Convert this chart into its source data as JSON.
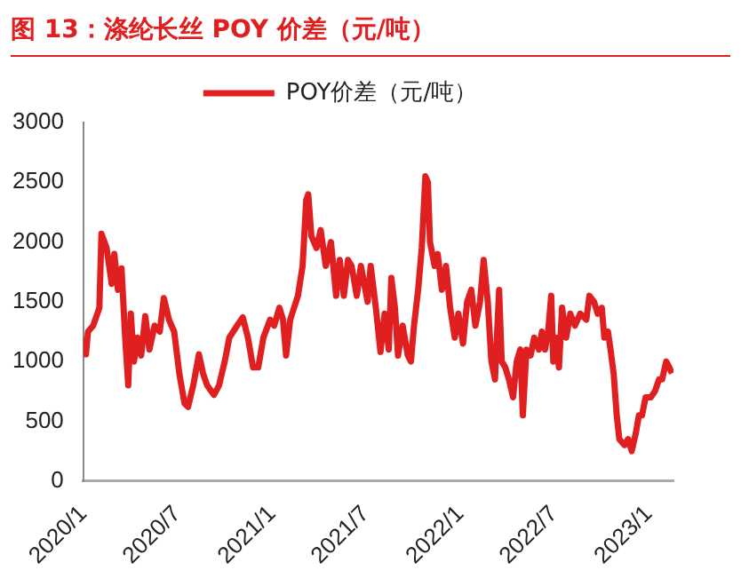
{
  "chart_data": {
    "type": "line",
    "title": "图 13：涤纶长丝 POY 价差（元/吨）",
    "legend": "top",
    "x": [
      "2020-01-02",
      "2020-01-06",
      "2020-01-10",
      "2020-01-20",
      "2020-02-01",
      "2020-02-05",
      "2020-02-15",
      "2020-02-25",
      "2020-03-01",
      "2020-03-08",
      "2020-03-15",
      "2020-03-22",
      "2020-03-28",
      "2020-04-02",
      "2020-04-08",
      "2020-04-15",
      "2020-04-22",
      "2020-04-30",
      "2020-05-08",
      "2020-05-18",
      "2020-05-28",
      "2020-06-05",
      "2020-06-15",
      "2020-06-25",
      "2020-07-05",
      "2020-07-15",
      "2020-07-22",
      "2020-08-01",
      "2020-08-12",
      "2020-08-20",
      "2020-08-28",
      "2020-09-10",
      "2020-09-20",
      "2020-10-01",
      "2020-10-10",
      "2020-10-25",
      "2020-11-05",
      "2020-11-15",
      "2020-11-25",
      "2020-12-05",
      "2020-12-15",
      "2020-12-28",
      "2021-01-05",
      "2021-01-15",
      "2021-01-22",
      "2021-01-28",
      "2021-02-05",
      "2021-02-20",
      "2021-03-01",
      "2021-03-08",
      "2021-03-12",
      "2021-03-18",
      "2021-03-28",
      "2021-04-05",
      "2021-04-15",
      "2021-04-25",
      "2021-05-05",
      "2021-05-12",
      "2021-05-20",
      "2021-05-28",
      "2021-06-04",
      "2021-06-14",
      "2021-06-22",
      "2021-07-05",
      "2021-07-11",
      "2021-07-21",
      "2021-07-30",
      "2021-08-07",
      "2021-08-15",
      "2021-08-20",
      "2021-08-27",
      "2021-09-02",
      "2021-09-11",
      "2021-09-21",
      "2021-09-27",
      "2021-10-03",
      "2021-10-11",
      "2021-10-18",
      "2021-10-25",
      "2021-10-30",
      "2021-11-03",
      "2021-11-12",
      "2021-11-18",
      "2021-11-26",
      "2021-12-04",
      "2021-12-12",
      "2021-12-21",
      "2021-12-28",
      "2022-01-06",
      "2022-01-14",
      "2022-01-22",
      "2022-01-30",
      "2022-02-08",
      "2022-02-15",
      "2022-02-23",
      "2022-03-02",
      "2022-03-09",
      "2022-03-17",
      "2022-03-22",
      "2022-03-29",
      "2022-04-05",
      "2022-04-13",
      "2022-04-20",
      "2022-04-27",
      "2022-05-02",
      "2022-05-09",
      "2022-05-17",
      "2022-05-24",
      "2022-06-02",
      "2022-06-08",
      "2022-06-14",
      "2022-06-20",
      "2022-06-26",
      "2022-06-30",
      "2022-07-05",
      "2022-07-11",
      "2022-07-17",
      "2022-07-25",
      "2022-08-02",
      "2022-08-11",
      "2022-08-21",
      "2022-09-02",
      "2022-09-08",
      "2022-09-17",
      "2022-09-24",
      "2022-10-02",
      "2022-10-07",
      "2022-10-14",
      "2022-10-19",
      "2022-10-25",
      "2022-10-31",
      "2022-11-05",
      "2022-11-15",
      "2022-11-22",
      "2022-11-29",
      "2022-12-07",
      "2022-12-13",
      "2022-12-19",
      "2022-12-26",
      "2023-01-05",
      "2023-01-13",
      "2023-01-21",
      "2023-01-27",
      "2023-02-04",
      "2023-02-10",
      "2023-02-15"
    ],
    "series": [
      {
        "name": "POY价差（元/吨）",
        "color": "#e02020",
        "values": [
          1200,
          1060,
          1250,
          1300,
          1450,
          2070,
          1950,
          1650,
          1900,
          1600,
          1780,
          1200,
          800,
          1400,
          1000,
          1200,
          1050,
          1380,
          1100,
          1300,
          1250,
          1530,
          1350,
          1250,
          900,
          650,
          620,
          800,
          1060,
          900,
          800,
          720,
          800,
          1000,
          1200,
          1300,
          1370,
          1200,
          950,
          950,
          1200,
          1350,
          1300,
          1450,
          1350,
          1050,
          1350,
          1550,
          1800,
          2350,
          2400,
          2050,
          1950,
          2100,
          1800,
          2000,
          1550,
          1850,
          1550,
          1850,
          1800,
          1550,
          1800,
          1500,
          1800,
          1450,
          1080,
          1400,
          1100,
          1700,
          1450,
          1050,
          1300,
          1050,
          1000,
          1300,
          1600,
          1950,
          2550,
          2500,
          2000,
          1800,
          1900,
          1600,
          1800,
          1450,
          1200,
          1400,
          1150,
          1500,
          1600,
          1300,
          1500,
          1850,
          1500,
          1000,
          850,
          1600,
          1000,
          950,
          850,
          700,
          1000,
          1100,
          550,
          1100,
          1050,
          1200,
          1100,
          1250,
          1100,
          1250,
          1550,
          1000,
          1200,
          950,
          1450,
          1200,
          1400,
          1300,
          1400,
          1350,
          1550,
          1500,
          1400,
          1450,
          1200,
          1250,
          1100,
          900,
          550,
          350,
          300,
          350,
          250,
          400,
          550,
          550,
          700,
          700,
          750,
          850,
          850,
          1000,
          950,
          900
        ]
      }
    ],
    "xlim": [
      "2020-01-01",
      "2023-02-18"
    ],
    "xticks": [
      {
        "value": "2020-01-01",
        "label": "2020/1"
      },
      {
        "value": "2020-07-01",
        "label": "2020/7"
      },
      {
        "value": "2021-01-01",
        "label": "2021/1"
      },
      {
        "value": "2021-07-01",
        "label": "2021/7"
      },
      {
        "value": "2022-01-01",
        "label": "2022/1"
      },
      {
        "value": "2022-07-01",
        "label": "2022/7"
      },
      {
        "value": "2023-01-01",
        "label": "2023/1"
      }
    ],
    "ylim": [
      0,
      3000
    ],
    "yticks": [
      0,
      500,
      1000,
      1500,
      2000,
      2500,
      3000
    ]
  }
}
